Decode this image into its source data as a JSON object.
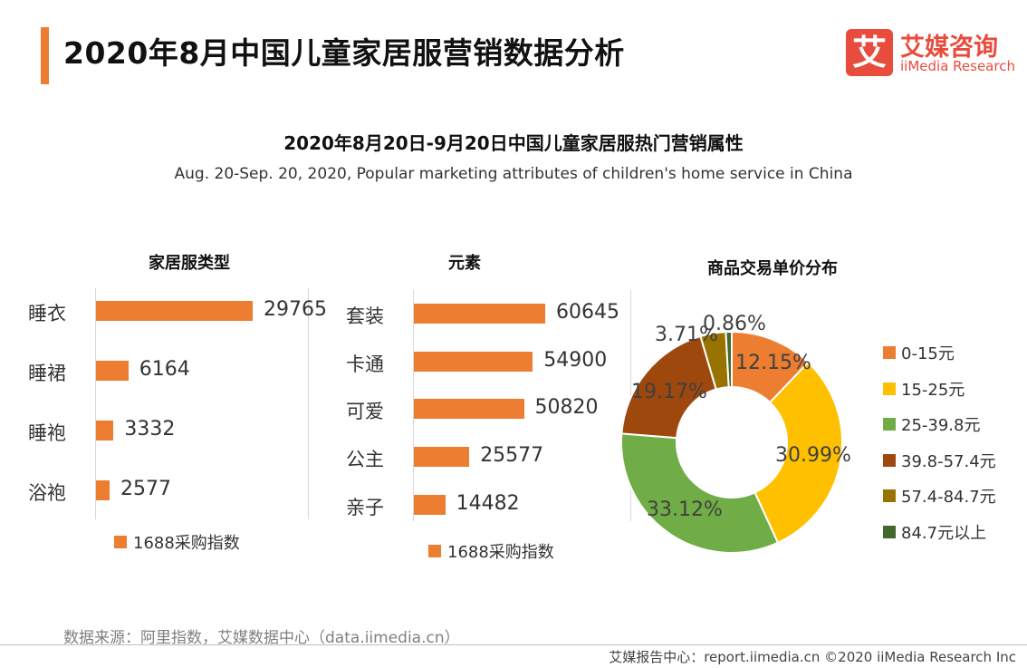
{
  "header": {
    "title": "2020年8月中国儿童家居服营销数据分析",
    "logo_mark": "艾",
    "logo_cn": "艾媒咨询",
    "logo_en": "iiMedia Research"
  },
  "subtitle_cn": "2020年8月20日-9月20日中国儿童家居服热门营销属性",
  "subtitle_en": "Aug. 20-Sep. 20, 2020, Popular marketing attributes of children's home service in China",
  "chart_data": [
    {
      "type": "bar",
      "orientation": "horizontal",
      "title": "家居服类型",
      "categories": [
        "睡衣",
        "睡裙",
        "睡袍",
        "浴袍"
      ],
      "series": [
        {
          "name": "1688采购指数",
          "values": [
            29765,
            6164,
            3332,
            2577
          ]
        }
      ],
      "value_labels": [
        "29765",
        "6164",
        "3332",
        "2577"
      ],
      "color": "#ed7d31"
    },
    {
      "type": "bar",
      "orientation": "horizontal",
      "title": "元素",
      "categories": [
        "套装",
        "卡通",
        "可爱",
        "公主",
        "亲子"
      ],
      "series": [
        {
          "name": "1688采购指数",
          "values": [
            60645,
            54900,
            50820,
            25577,
            14482
          ]
        }
      ],
      "value_labels": [
        "60645",
        "54900",
        "50820",
        "25577",
        "14482"
      ],
      "color": "#ed7d31"
    },
    {
      "type": "pie",
      "variant": "donut",
      "title": "商品交易单价分布",
      "categories": [
        "0-15元",
        "15-25元",
        "25-39.8元",
        "39.8-57.4元",
        "57.4-84.7元",
        "84.7元以上"
      ],
      "values": [
        12.15,
        30.99,
        33.12,
        19.17,
        3.71,
        0.86
      ],
      "value_labels": [
        "12.15%",
        "30.99%",
        "33.12%",
        "19.17%",
        "3.71%",
        "0.86%"
      ],
      "colors": [
        "#ed7d31",
        "#ffc000",
        "#70ad47",
        "#9e480e",
        "#997300",
        "#43682b"
      ],
      "legend_position": "right"
    }
  ],
  "footer": {
    "source": "数据来源：阿里指数，艾媒数据中心（data.iimedia.cn）",
    "credit": "艾媒报告中心：report.iimedia.cn  ©2020  iiMedia Research  Inc"
  }
}
